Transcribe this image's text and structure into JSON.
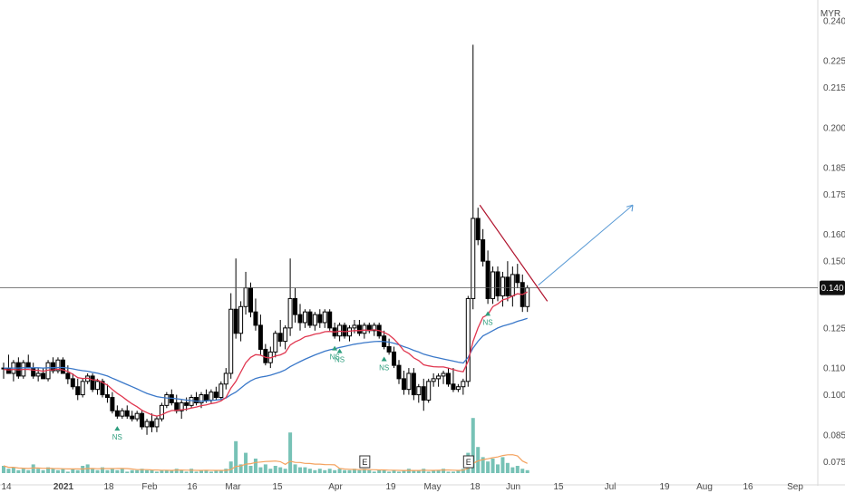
{
  "chart_data": {
    "type": "candlestick",
    "currency": "MYR",
    "ylim": [
      0.07,
      0.243
    ],
    "y_ticks": [
      "0.240",
      "0.225",
      "0.215",
      "0.200",
      "0.185",
      "0.175",
      "0.160",
      "0.150",
      "0.140",
      "0.125",
      "0.110",
      "0.100",
      "0.085",
      "0.075"
    ],
    "y_tick_values": [
      0.24,
      0.225,
      0.215,
      0.2,
      0.185,
      0.175,
      0.16,
      0.15,
      0.14,
      0.125,
      0.11,
      0.1,
      0.085,
      0.075
    ],
    "last_price_label": "0.140",
    "last_price": 0.14,
    "x_labels": [
      "14",
      "2021",
      "18",
      "Feb",
      "16",
      "Mar",
      "15",
      "Apr",
      "19",
      "May",
      "18",
      "Jun",
      "15",
      "Jul",
      "19",
      "Aug",
      "16",
      "Sep"
    ],
    "x_bold_labels": [
      "2021"
    ],
    "colors": {
      "up_body": "#ffffff",
      "down_body": "#000000",
      "wick": "#000000",
      "ma_fast": "#e0364f",
      "ma_slow": "#3a78c9",
      "volume_bar": "#5fb7a9",
      "volume_ma": "#f4a25f",
      "trendline": "#b0132d",
      "projection_arrow": "#5b9bd5",
      "price_line": "#555555",
      "signal": "#2e9e7e"
    },
    "candles": [
      [
        0.11,
        0.112,
        0.106,
        0.11
      ],
      [
        0.11,
        0.115,
        0.108,
        0.108
      ],
      [
        0.108,
        0.113,
        0.105,
        0.112
      ],
      [
        0.112,
        0.114,
        0.106,
        0.107
      ],
      [
        0.107,
        0.113,
        0.106,
        0.112
      ],
      [
        0.112,
        0.115,
        0.11,
        0.11
      ],
      [
        0.11,
        0.112,
        0.106,
        0.107
      ],
      [
        0.107,
        0.11,
        0.105,
        0.108
      ],
      [
        0.108,
        0.11,
        0.106,
        0.106
      ],
      [
        0.106,
        0.113,
        0.105,
        0.112
      ],
      [
        0.112,
        0.114,
        0.108,
        0.109
      ],
      [
        0.109,
        0.114,
        0.108,
        0.113
      ],
      [
        0.113,
        0.114,
        0.108,
        0.108
      ],
      [
        0.108,
        0.111,
        0.104,
        0.106
      ],
      [
        0.106,
        0.108,
        0.102,
        0.103
      ],
      [
        0.103,
        0.106,
        0.098,
        0.1
      ],
      [
        0.1,
        0.106,
        0.099,
        0.105
      ],
      [
        0.105,
        0.108,
        0.104,
        0.107
      ],
      [
        0.107,
        0.108,
        0.101,
        0.102
      ],
      [
        0.102,
        0.106,
        0.1,
        0.105
      ],
      [
        0.105,
        0.106,
        0.099,
        0.1
      ],
      [
        0.1,
        0.104,
        0.097,
        0.099
      ],
      [
        0.099,
        0.101,
        0.093,
        0.094
      ],
      [
        0.094,
        0.096,
        0.091,
        0.092
      ],
      [
        0.092,
        0.095,
        0.091,
        0.094
      ],
      [
        0.094,
        0.096,
        0.091,
        0.092
      ],
      [
        0.092,
        0.094,
        0.09,
        0.091
      ],
      [
        0.091,
        0.094,
        0.09,
        0.093
      ],
      [
        0.093,
        0.094,
        0.087,
        0.088
      ],
      [
        0.088,
        0.091,
        0.085,
        0.09
      ],
      [
        0.09,
        0.093,
        0.086,
        0.088
      ],
      [
        0.088,
        0.092,
        0.086,
        0.091
      ],
      [
        0.091,
        0.097,
        0.09,
        0.096
      ],
      [
        0.096,
        0.101,
        0.095,
        0.1
      ],
      [
        0.1,
        0.102,
        0.096,
        0.097
      ],
      [
        0.097,
        0.1,
        0.093,
        0.094
      ],
      [
        0.094,
        0.098,
        0.091,
        0.097
      ],
      [
        0.097,
        0.099,
        0.094,
        0.096
      ],
      [
        0.096,
        0.1,
        0.095,
        0.099
      ],
      [
        0.099,
        0.101,
        0.096,
        0.097
      ],
      [
        0.097,
        0.101,
        0.095,
        0.1
      ],
      [
        0.1,
        0.102,
        0.097,
        0.098
      ],
      [
        0.098,
        0.102,
        0.097,
        0.101
      ],
      [
        0.101,
        0.103,
        0.098,
        0.099
      ],
      [
        0.099,
        0.105,
        0.098,
        0.104
      ],
      [
        0.104,
        0.11,
        0.102,
        0.108
      ],
      [
        0.108,
        0.138,
        0.106,
        0.132
      ],
      [
        0.132,
        0.151,
        0.121,
        0.123
      ],
      [
        0.123,
        0.135,
        0.12,
        0.133
      ],
      [
        0.133,
        0.146,
        0.13,
        0.14
      ],
      [
        0.14,
        0.142,
        0.129,
        0.131
      ],
      [
        0.131,
        0.136,
        0.124,
        0.126
      ],
      [
        0.126,
        0.13,
        0.115,
        0.117
      ],
      [
        0.117,
        0.119,
        0.111,
        0.112
      ],
      [
        0.112,
        0.118,
        0.11,
        0.116
      ],
      [
        0.116,
        0.124,
        0.114,
        0.123
      ],
      [
        0.123,
        0.128,
        0.118,
        0.12
      ],
      [
        0.12,
        0.126,
        0.117,
        0.125
      ],
      [
        0.125,
        0.151,
        0.122,
        0.136
      ],
      [
        0.136,
        0.14,
        0.127,
        0.13
      ],
      [
        0.13,
        0.134,
        0.124,
        0.127
      ],
      [
        0.127,
        0.132,
        0.125,
        0.131
      ],
      [
        0.131,
        0.132,
        0.125,
        0.126
      ],
      [
        0.126,
        0.131,
        0.124,
        0.13
      ],
      [
        0.13,
        0.132,
        0.125,
        0.127
      ],
      [
        0.127,
        0.132,
        0.125,
        0.131
      ],
      [
        0.131,
        0.132,
        0.124,
        0.125
      ],
      [
        0.125,
        0.127,
        0.121,
        0.122
      ],
      [
        0.122,
        0.127,
        0.12,
        0.126
      ],
      [
        0.126,
        0.127,
        0.121,
        0.122
      ],
      [
        0.122,
        0.126,
        0.12,
        0.125
      ],
      [
        0.125,
        0.128,
        0.123,
        0.126
      ],
      [
        0.126,
        0.128,
        0.122,
        0.123
      ],
      [
        0.123,
        0.127,
        0.121,
        0.126
      ],
      [
        0.126,
        0.127,
        0.123,
        0.124
      ],
      [
        0.124,
        0.127,
        0.122,
        0.126
      ],
      [
        0.126,
        0.127,
        0.121,
        0.122
      ],
      [
        0.122,
        0.124,
        0.117,
        0.118
      ],
      [
        0.118,
        0.121,
        0.115,
        0.116
      ],
      [
        0.116,
        0.118,
        0.11,
        0.111
      ],
      [
        0.111,
        0.113,
        0.104,
        0.106
      ],
      [
        0.106,
        0.109,
        0.1,
        0.102
      ],
      [
        0.102,
        0.11,
        0.1,
        0.108
      ],
      [
        0.108,
        0.11,
        0.098,
        0.1
      ],
      [
        0.1,
        0.104,
        0.097,
        0.103
      ],
      [
        0.103,
        0.106,
        0.094,
        0.098
      ],
      [
        0.098,
        0.106,
        0.097,
        0.105
      ],
      [
        0.105,
        0.108,
        0.103,
        0.106
      ],
      [
        0.106,
        0.108,
        0.103,
        0.107
      ],
      [
        0.107,
        0.109,
        0.104,
        0.108
      ],
      [
        0.108,
        0.11,
        0.103,
        0.104
      ],
      [
        0.104,
        0.11,
        0.101,
        0.102
      ],
      [
        0.102,
        0.104,
        0.101,
        0.103
      ],
      [
        0.103,
        0.106,
        0.1,
        0.105
      ],
      [
        0.105,
        0.137,
        0.103,
        0.136
      ],
      [
        0.136,
        0.231,
        0.132,
        0.166
      ],
      [
        0.166,
        0.17,
        0.156,
        0.158
      ],
      [
        0.158,
        0.162,
        0.148,
        0.15
      ],
      [
        0.15,
        0.154,
        0.134,
        0.136
      ],
      [
        0.136,
        0.148,
        0.134,
        0.146
      ],
      [
        0.146,
        0.148,
        0.135,
        0.137
      ],
      [
        0.137,
        0.146,
        0.133,
        0.144
      ],
      [
        0.144,
        0.15,
        0.135,
        0.137
      ],
      [
        0.137,
        0.148,
        0.133,
        0.145
      ],
      [
        0.145,
        0.149,
        0.14,
        0.142
      ],
      [
        0.142,
        0.145,
        0.131,
        0.133
      ],
      [
        0.133,
        0.141,
        0.131,
        0.14
      ]
    ],
    "ma_fast": [
      0.1095,
      0.1093,
      0.1095,
      0.1093,
      0.1095,
      0.1095,
      0.1092,
      0.1091,
      0.1088,
      0.1092,
      0.1093,
      0.1096,
      0.1093,
      0.1087,
      0.1077,
      0.1064,
      0.1061,
      0.1062,
      0.1056,
      0.1055,
      0.1046,
      0.1036,
      0.102,
      0.1005,
      0.0993,
      0.0979,
      0.0966,
      0.0955,
      0.0942,
      0.0933,
      0.0925,
      0.092,
      0.0925,
      0.0934,
      0.0941,
      0.0942,
      0.0944,
      0.0946,
      0.095,
      0.0954,
      0.0959,
      0.0962,
      0.0967,
      0.097,
      0.0977,
      0.099,
      0.1025,
      0.105,
      0.1085,
      0.112,
      0.114,
      0.115,
      0.1148,
      0.114,
      0.1138,
      0.1145,
      0.1149,
      0.1158,
      0.1186,
      0.1198,
      0.1206,
      0.1217,
      0.1221,
      0.1227,
      0.123,
      0.1236,
      0.1237,
      0.1235,
      0.1238,
      0.1236,
      0.1238,
      0.124,
      0.124,
      0.1242,
      0.1241,
      0.1243,
      0.124,
      0.1233,
      0.1224,
      0.1208,
      0.1188,
      0.1165,
      0.1155,
      0.1138,
      0.1128,
      0.1112,
      0.1108,
      0.1105,
      0.1104,
      0.1104,
      0.11,
      0.1094,
      0.1089,
      0.1086,
      0.1125,
      0.12,
      0.125,
      0.129,
      0.13,
      0.133,
      0.134,
      0.1355,
      0.136,
      0.137,
      0.1378,
      0.1375,
      0.1385
    ],
    "ma_slow": [
      0.11,
      0.11,
      0.11,
      0.11,
      0.1101,
      0.1101,
      0.1101,
      0.1101,
      0.11,
      0.1101,
      0.1101,
      0.1102,
      0.1102,
      0.11,
      0.1097,
      0.1093,
      0.109,
      0.1088,
      0.1084,
      0.1081,
      0.1076,
      0.107,
      0.1062,
      0.1054,
      0.1046,
      0.1038,
      0.103,
      0.1022,
      0.1013,
      0.1005,
      0.0999,
      0.0993,
      0.099,
      0.0988,
      0.0987,
      0.0985,
      0.0983,
      0.098,
      0.0978,
      0.0976,
      0.0976,
      0.0977,
      0.0979,
      0.098,
      0.0983,
      0.0988,
      0.1,
      0.101,
      0.1025,
      0.104,
      0.1052,
      0.1061,
      0.1066,
      0.1069,
      0.1073,
      0.1079,
      0.1085,
      0.1093,
      0.1105,
      0.1115,
      0.1124,
      0.1133,
      0.1141,
      0.1149,
      0.1156,
      0.1163,
      0.1168,
      0.1172,
      0.1177,
      0.1181,
      0.1185,
      0.1189,
      0.1192,
      0.1195,
      0.1197,
      0.1199,
      0.12,
      0.1199,
      0.1197,
      0.1193,
      0.1187,
      0.118,
      0.1174,
      0.1166,
      0.116,
      0.1152,
      0.1147,
      0.1142,
      0.1138,
      0.1134,
      0.113,
      0.1126,
      0.1122,
      0.1119,
      0.114,
      0.1175,
      0.12,
      0.122,
      0.123,
      0.124,
      0.125,
      0.1257,
      0.1262,
      0.1268,
      0.1275,
      0.128,
      0.1286
    ],
    "volume": [
      5,
      3,
      4,
      2,
      3,
      2,
      6,
      3,
      2,
      4,
      3,
      2,
      3,
      1,
      3,
      2,
      5,
      6,
      3,
      2,
      4,
      2,
      3,
      2,
      3,
      1,
      2,
      2,
      3,
      2,
      2,
      1,
      2,
      2,
      2,
      3,
      2,
      1,
      3,
      1,
      2,
      2,
      1,
      2,
      2,
      3,
      8,
      22,
      6,
      14,
      5,
      10,
      4,
      6,
      3,
      5,
      4,
      3,
      28,
      6,
      4,
      4,
      3,
      2,
      3,
      2,
      3,
      2,
      3,
      2,
      2,
      3,
      2,
      3,
      2,
      1,
      2,
      2,
      1,
      2,
      1,
      2,
      3,
      2,
      2,
      3,
      1,
      2,
      2,
      3,
      1,
      1,
      2,
      3,
      14,
      38,
      18,
      11,
      8,
      10,
      6,
      11,
      7,
      4,
      5,
      3,
      2
    ],
    "signals": [
      {
        "label": "NS",
        "index": 23
      },
      {
        "label": "NS",
        "index": 67
      },
      {
        "label": "NS",
        "index": 68
      },
      {
        "label": "NS",
        "index": 77
      },
      {
        "label": "NS",
        "index": 98
      }
    ],
    "earnings_markers": [
      {
        "label": "E",
        "index": 73
      },
      {
        "label": "E",
        "index": 94
      }
    ]
  }
}
